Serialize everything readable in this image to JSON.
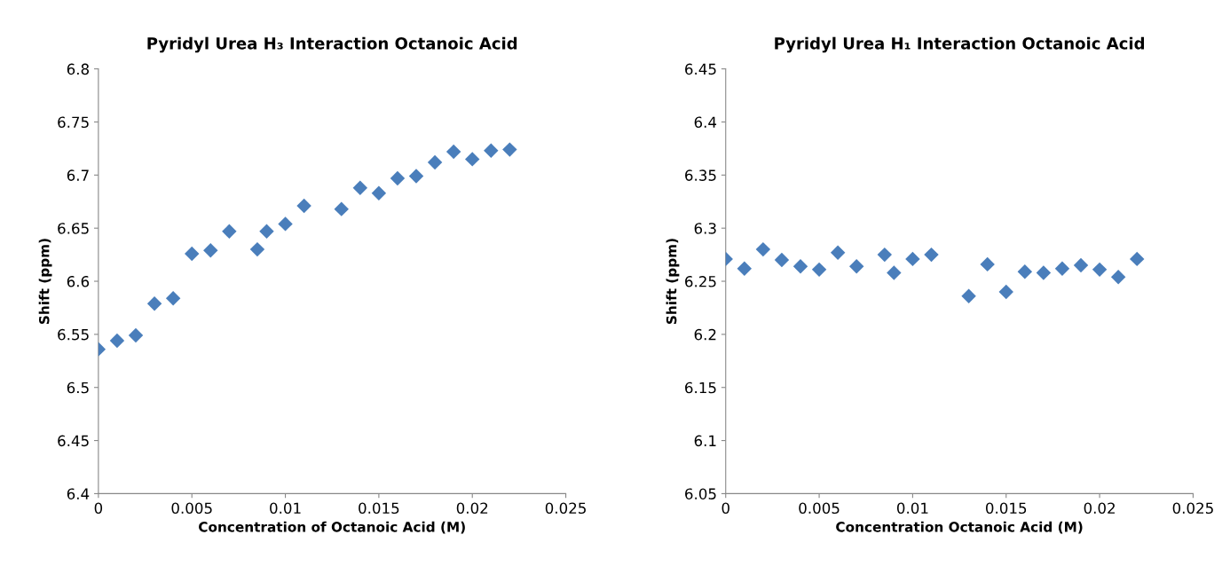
{
  "chart_data": [
    {
      "type": "scatter",
      "title": "Pyridyl Urea H₃ Interaction Octanoic Acid",
      "xlabel": "Concentration of Octanoic Acid (M)",
      "ylabel": "Shift (ppm)",
      "x": [
        0,
        0.001,
        0.002,
        0.003,
        0.004,
        0.005,
        0.006,
        0.007,
        0.0085,
        0.009,
        0.01,
        0.011,
        0.013,
        0.014,
        0.015,
        0.016,
        0.017,
        0.018,
        0.019,
        0.02,
        0.021,
        0.022
      ],
      "series": [
        {
          "color": "#4a7ebb",
          "values": [
            6.536,
            6.544,
            6.549,
            6.579,
            6.584,
            6.626,
            6.629,
            6.647,
            6.63,
            6.647,
            6.654,
            6.671,
            6.668,
            6.688,
            6.683,
            6.697,
            6.699,
            6.712,
            6.722,
            6.715,
            6.723,
            6.724
          ]
        }
      ],
      "xlim": [
        0,
        0.025
      ],
      "xticks": [
        0,
        0.005,
        0.01,
        0.015,
        0.02,
        0.025
      ],
      "ylim": [
        6.4,
        6.8
      ],
      "yticks": [
        6.4,
        6.45,
        6.5,
        6.55,
        6.6,
        6.65,
        6.7,
        6.75,
        6.8
      ],
      "marker": "diamond",
      "grid": false,
      "legend": false
    },
    {
      "type": "scatter",
      "title": "Pyridyl Urea H₁ Interaction Octanoic Acid",
      "xlabel": "Concentration Octanoic Acid (M)",
      "ylabel": "Shift (ppm)",
      "x": [
        0,
        0.001,
        0.002,
        0.003,
        0.004,
        0.005,
        0.006,
        0.007,
        0.0085,
        0.009,
        0.01,
        0.011,
        0.013,
        0.014,
        0.015,
        0.016,
        0.017,
        0.018,
        0.019,
        0.02,
        0.021,
        0.022
      ],
      "series": [
        {
          "color": "#4a7ebb",
          "values": [
            6.271,
            6.262,
            6.28,
            6.27,
            6.264,
            6.261,
            6.277,
            6.264,
            6.275,
            6.258,
            6.271,
            6.275,
            6.236,
            6.266,
            6.24,
            6.259,
            6.258,
            6.262,
            6.265,
            6.261,
            6.254,
            6.271
          ]
        }
      ],
      "xlim": [
        0,
        0.025
      ],
      "xticks": [
        0,
        0.005,
        0.01,
        0.015,
        0.02,
        0.025
      ],
      "ylim": [
        6.05,
        6.45
      ],
      "yticks": [
        6.05,
        6.1,
        6.15,
        6.2,
        6.25,
        6.3,
        6.35,
        6.4,
        6.45
      ],
      "marker": "diamond",
      "grid": false,
      "legend": false
    }
  ]
}
